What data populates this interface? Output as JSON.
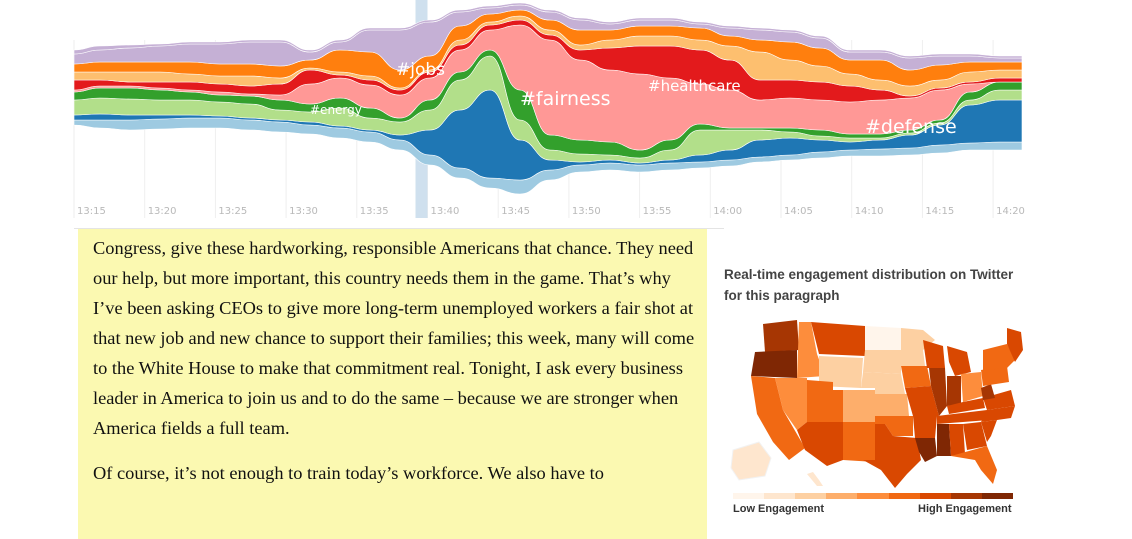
{
  "chart_data": {
    "type": "area",
    "x": [
      "13:15",
      "13:20",
      "13:25",
      "13:30",
      "13:35",
      "13:40",
      "13:45",
      "13:50",
      "13:55",
      "14:00",
      "14:05",
      "14:10",
      "14:15",
      "14:20"
    ],
    "topics": [
      {
        "label": "#energy",
        "color": "#2ca02c"
      },
      {
        "label": "#jobs",
        "color": "#ff7f0e"
      },
      {
        "label": "#fairness",
        "color": "#ff9896"
      },
      {
        "label": "#healthcare",
        "color": "#e31a1c"
      },
      {
        "label": "#defense",
        "color": "#1f77b4"
      }
    ],
    "colors": {
      "light_blue": "#9ecae1",
      "blue": "#1f77b4",
      "light_green": "#b2df8a",
      "green": "#33a02c",
      "pink": "#ff9896",
      "red": "#e31a1c",
      "light_orange": "#fdbf6f",
      "orange": "#ff7f0e",
      "lavender": "#c5b0d5",
      "cursor": "#cfe0ee"
    },
    "cursor_time": "13:40"
  },
  "speech": {
    "paragraphs": [
      "Congress, give these hardworking, responsible Americans that chance. They need our help, but more important, this country needs them in the game. That’s why I’ve been asking CEOs to give more long-term unemployed workers a fair shot at that new job and new chance to support their families; this week, many will come to the White House to make that commitment real. Tonight, I ask every business leader in America to join us and to do the same – because we are stronger when America fields a full team.",
      "Of course, it’s not enough to train today’s workforce. We also have to"
    ]
  },
  "map": {
    "title": "Real-time engagement distribution on Twitter for this paragraph",
    "legend_low": "Low Engagement",
    "legend_high": "High Engagement",
    "scale": [
      "#fff5eb",
      "#fee6ce",
      "#fdd0a2",
      "#fdae6b",
      "#fd8d3c",
      "#f16913",
      "#d94801",
      "#a63603",
      "#7f2704"
    ]
  }
}
